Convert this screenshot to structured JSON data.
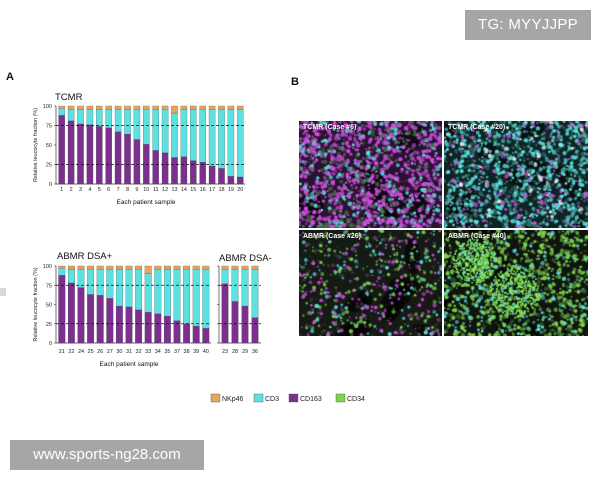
{
  "badge": {
    "text": "TG: MYYJJPP"
  },
  "watermark": {
    "text": "www.sports-ng28.com"
  },
  "panel_labels": {
    "a": "A",
    "b": "B"
  },
  "colors": {
    "NKp46": "#e9a35a",
    "CD3": "#5ce0e0",
    "CD163": "#7b2f8e",
    "CD34": "#7fd34e"
  },
  "legend": [
    {
      "name": "NKp46",
      "color": "#e9a35a"
    },
    {
      "name": "CD3",
      "color": "#5ce0e0"
    },
    {
      "name": "CD163",
      "color": "#7b2f8e"
    },
    {
      "name": "CD34",
      "color": "#7fd34e"
    }
  ],
  "chart_data": [
    {
      "type": "bar",
      "title": "TCMR",
      "xlabel": "Each patient sample",
      "ylabel": "Relative leucocyte fraction (%)",
      "ylim": [
        0,
        100
      ],
      "yticks": [
        0,
        25,
        50,
        75,
        100
      ],
      "reference_lines": [
        25,
        75
      ],
      "stacked": true,
      "categories": [
        "1",
        "2",
        "3",
        "4",
        "5",
        "6",
        "7",
        "8",
        "9",
        "10",
        "11",
        "12",
        "13",
        "14",
        "15",
        "16",
        "17",
        "18",
        "19",
        "20"
      ],
      "series": [
        {
          "name": "CD163",
          "values": [
            88,
            81,
            77,
            76,
            74,
            72,
            67,
            64,
            57,
            51,
            43,
            40,
            34,
            35,
            30,
            28,
            23,
            20,
            10,
            9
          ]
        },
        {
          "name": "CD3",
          "values": [
            9,
            15,
            19,
            20,
            22,
            24,
            29,
            32,
            39,
            45,
            53,
            56,
            57,
            61,
            66,
            68,
            73,
            76,
            86,
            87
          ]
        },
        {
          "name": "NKp46",
          "values": [
            3,
            4,
            4,
            4,
            4,
            4,
            4,
            4,
            4,
            4,
            4,
            4,
            9,
            4,
            4,
            4,
            4,
            4,
            4,
            4
          ]
        }
      ]
    },
    {
      "type": "bar",
      "title": "ABMR DSA+",
      "xlabel": "Each patient sample",
      "ylabel": "Relative leucocyte fraction (%)",
      "ylim": [
        0,
        100
      ],
      "yticks": [
        0,
        25,
        50,
        75,
        100
      ],
      "reference_lines": [
        25,
        75
      ],
      "stacked": true,
      "categories": [
        "21",
        "22",
        "24",
        "25",
        "26",
        "27",
        "30",
        "31",
        "32",
        "33",
        "34",
        "35",
        "37",
        "38",
        "39",
        "40"
      ],
      "series": [
        {
          "name": "CD163",
          "values": [
            88,
            78,
            72,
            63,
            62,
            58,
            48,
            47,
            43,
            40,
            38,
            35,
            29,
            25,
            22,
            19
          ]
        },
        {
          "name": "CD3",
          "values": [
            9,
            18,
            24,
            33,
            34,
            38,
            48,
            49,
            53,
            50,
            58,
            61,
            67,
            71,
            74,
            77
          ]
        },
        {
          "name": "NKp46",
          "values": [
            3,
            4,
            4,
            4,
            4,
            4,
            4,
            4,
            4,
            10,
            4,
            4,
            4,
            4,
            4,
            4
          ]
        }
      ]
    },
    {
      "type": "bar",
      "title": "ABMR DSA-",
      "xlabel": "",
      "ylabel": "",
      "ylim": [
        0,
        100
      ],
      "yticks": [
        0,
        25,
        50,
        75,
        100
      ],
      "reference_lines": [
        25,
        75
      ],
      "stacked": true,
      "categories": [
        "23",
        "28",
        "29",
        "36"
      ],
      "series": [
        {
          "name": "CD163",
          "values": [
            77,
            54,
            48,
            33
          ]
        },
        {
          "name": "CD3",
          "values": [
            19,
            42,
            48,
            63
          ]
        },
        {
          "name": "NKp46",
          "values": [
            4,
            4,
            4,
            4
          ]
        }
      ]
    }
  ],
  "micrographs": [
    {
      "label": "TCMR (Case #6)",
      "dominant": "CD163"
    },
    {
      "label": "TCMR (Case #20)",
      "dominant": "CD3"
    },
    {
      "label": "ABMR (Case #26)",
      "dominant": "CD34"
    },
    {
      "label": "ABMR (Case #40)",
      "dominant": "CD34"
    }
  ]
}
